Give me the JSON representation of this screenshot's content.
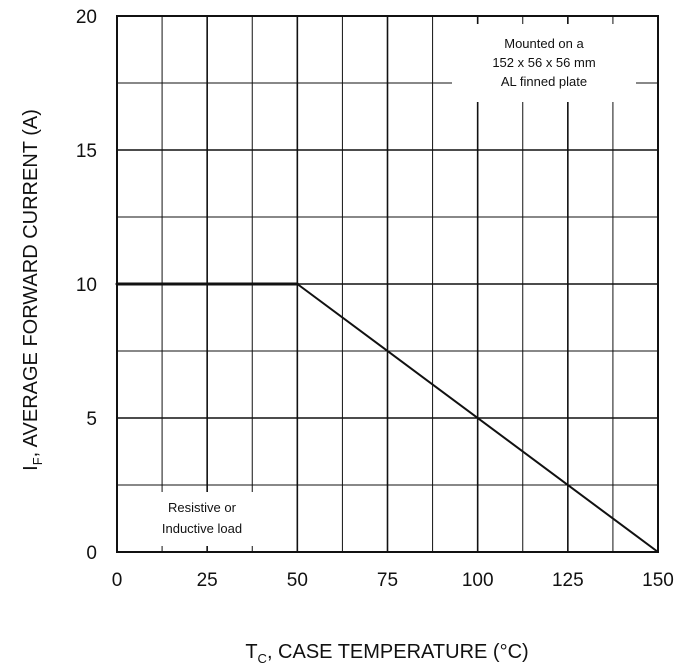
{
  "chart_data": {
    "type": "line",
    "x": [
      0,
      50,
      150
    ],
    "series": [
      {
        "values": [
          10,
          10,
          0
        ]
      }
    ],
    "xlabel": {
      "sub": "C",
      "main": ", CASE TEMPERATURE (°C)",
      "prefix": "T"
    },
    "ylabel": {
      "prefix": "I",
      "sub": "F",
      "main": ",  AVERAGE FORWARD CURRENT (A)"
    },
    "xlim": [
      0,
      150
    ],
    "ylim": [
      0,
      20
    ],
    "xticks": [
      0,
      25,
      50,
      75,
      100,
      125,
      150
    ],
    "yticks": [
      0,
      5,
      10,
      15,
      20
    ],
    "grid": true,
    "annotations": {
      "top_right": [
        "Mounted on a",
        "152 x 56 x 56 mm",
        "AL finned plate"
      ],
      "bottom_left": [
        "Resistive or",
        "Inductive load"
      ]
    }
  }
}
